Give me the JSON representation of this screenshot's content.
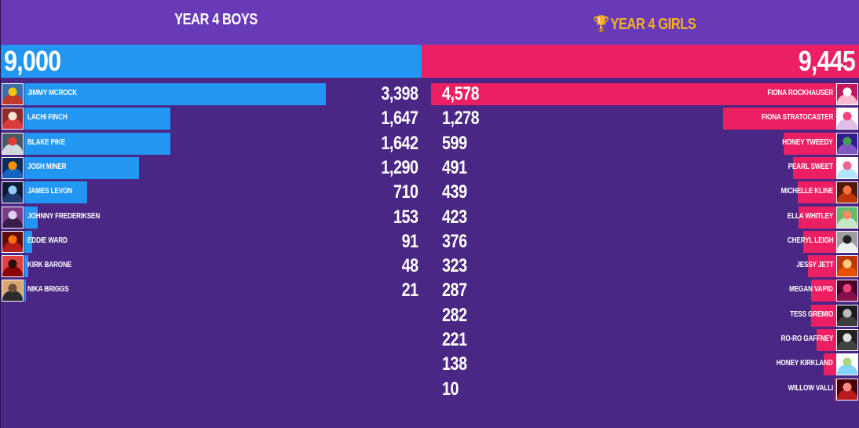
{
  "teams": {
    "boys": {
      "title": "YEAR 4 BOYS",
      "total": "9,000",
      "color": "#2196f3",
      "players": [
        {
          "name": "JIMMY MCROCK",
          "score": "3,398",
          "value": 3398,
          "avatar_colors": [
            "#c0392b",
            "#f1c40f",
            "#3a6fb0"
          ]
        },
        {
          "name": "LACHI FINCH",
          "score": "1,647",
          "value": 1647,
          "avatar_colors": [
            "#d93a3a",
            "#f4e3d0",
            "#8e2a2a"
          ]
        },
        {
          "name": "BLAKE PIKE",
          "score": "1,642",
          "value": 1642,
          "avatar_colors": [
            "#cfd8dc",
            "#e53935",
            "#455a64"
          ]
        },
        {
          "name": "JOSH MINER",
          "score": "1,290",
          "value": 1290,
          "avatar_colors": [
            "#1565c0",
            "#ff8f00",
            "#0d2a5c"
          ]
        },
        {
          "name": "JAMES LEVON",
          "score": "710",
          "value": 710,
          "avatar_colors": [
            "#1e3a6e",
            "#90caf9",
            "#0b1a33"
          ]
        },
        {
          "name": "JOHNNY FREDERIKSEN",
          "score": "153",
          "value": 153,
          "avatar_colors": [
            "#3a1d4a",
            "#e0d0f0",
            "#7a3d8a"
          ]
        },
        {
          "name": "EDDIE WARD",
          "score": "91",
          "value": 91,
          "avatar_colors": [
            "#b71c1c",
            "#ff6f00",
            "#5d0b0b"
          ]
        },
        {
          "name": "KIRK BARONE",
          "score": "48",
          "value": 48,
          "avatar_colors": [
            "#8b0000",
            "#2b0a0a",
            "#e04040"
          ]
        },
        {
          "name": "NIKA BRIGGS",
          "score": "21",
          "value": 21,
          "avatar_colors": [
            "#2b2b2b",
            "#6d4c41",
            "#d7a86e"
          ]
        }
      ]
    },
    "girls": {
      "title": "YEAR 4 GIRLS",
      "trophy_icon": "🏆",
      "total": "9,445",
      "color": "#ec1f63",
      "players": [
        {
          "name": "FIONA ROCKHAUSER",
          "score": "4,578",
          "value": 4578,
          "avatar_colors": [
            "#f8bbd0",
            "#ffffff",
            "#c2185b"
          ]
        },
        {
          "name": "FIONA STRATOCASTER",
          "score": "1,278",
          "value": 1278,
          "avatar_colors": [
            "#e1bee7",
            "#ff4081",
            "#ffffff"
          ]
        },
        {
          "name": "HONEY TWEEDY",
          "score": "599",
          "value": 599,
          "avatar_colors": [
            "#7e57c2",
            "#43a047",
            "#311b92"
          ]
        },
        {
          "name": "PEARL SWEET",
          "score": "491",
          "value": 491,
          "avatar_colors": [
            "#b3e5fc",
            "#f06292",
            "#ffffff"
          ]
        },
        {
          "name": "MICHELLE KLINE",
          "score": "439",
          "value": 439,
          "avatar_colors": [
            "#bf360c",
            "#ff7043",
            "#4e1a0a"
          ]
        },
        {
          "name": "ELLA WHITLEY",
          "score": "423",
          "value": 423,
          "avatar_colors": [
            "#c8e6c9",
            "#ff8a65",
            "#66bb6a"
          ]
        },
        {
          "name": "CHERYL LEIGH",
          "score": "376",
          "value": 376,
          "avatar_colors": [
            "#eeeeee",
            "#212121",
            "#9e9e9e"
          ]
        },
        {
          "name": "JESSY JETT",
          "score": "323",
          "value": 323,
          "avatar_colors": [
            "#e65100",
            "#ffcc80",
            "#bf360c"
          ]
        },
        {
          "name": "MEGAN VAPID",
          "score": "287",
          "value": 287,
          "avatar_colors": [
            "#880e4f",
            "#ec407a",
            "#4a0028"
          ]
        },
        {
          "name": "TESS GREMIO",
          "score": "282",
          "value": 282,
          "avatar_colors": [
            "#3e3e3e",
            "#bdbdbd",
            "#1a1a1a"
          ]
        },
        {
          "name": "RO-RO GAFFNEY",
          "score": "221",
          "value": 221,
          "avatar_colors": [
            "#424242",
            "#e0e0e0",
            "#212121"
          ]
        },
        {
          "name": "HONEY KIRKLAND",
          "score": "138",
          "value": 138,
          "avatar_colors": [
            "#81d4fa",
            "#aed581",
            "#ffffff"
          ]
        },
        {
          "name": "WILLOW VALLI",
          "score": "10",
          "value": 10,
          "avatar_colors": [
            "#b71c1c",
            "#ff8a80",
            "#4a0000"
          ]
        }
      ]
    }
  }
}
